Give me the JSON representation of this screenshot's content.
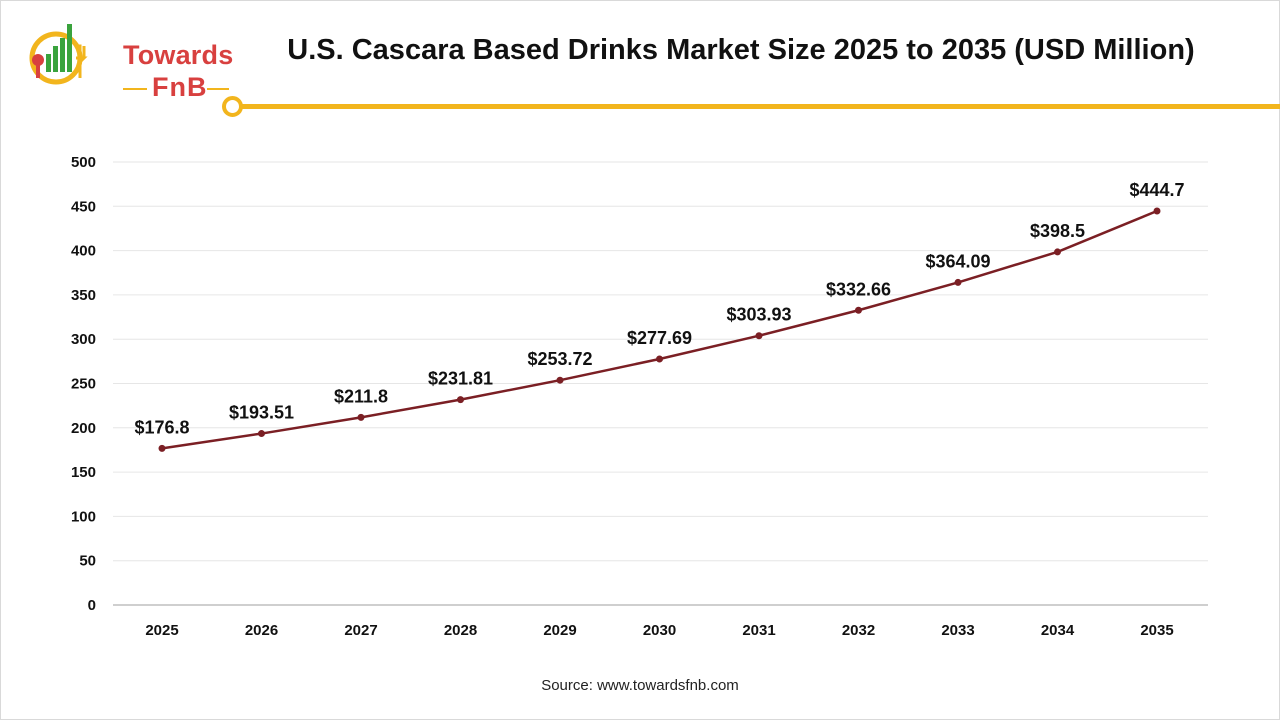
{
  "header": {
    "logo_line1": "Towards",
    "logo_line2": "FnB",
    "title": "U.S. Cascara Based Drinks Market Size 2025 to 2035 (USD Million)"
  },
  "footer": {
    "source": "Source: www.towardsfnb.com"
  },
  "colors": {
    "accent": "#f2b51d",
    "line": "#7b1f24",
    "brand": "#d8403f"
  },
  "chart_data": {
    "type": "line",
    "title": "U.S. Cascara Based Drinks Market Size 2025 to 2035 (USD Million)",
    "xlabel": "",
    "ylabel": "",
    "categories": [
      "2025",
      "2026",
      "2027",
      "2028",
      "2029",
      "2030",
      "2031",
      "2032",
      "2033",
      "2034",
      "2035"
    ],
    "series": [
      {
        "values": [
          176.8,
          193.51,
          211.8,
          231.81,
          253.72,
          277.69,
          303.93,
          332.66,
          364.09,
          398.5,
          444.7
        ],
        "labels": [
          "$176.8",
          "$193.51",
          "$211.8",
          "$231.81",
          "$253.72",
          "$277.69",
          "$303.93",
          "$332.66",
          "$364.09",
          "$398.5",
          "$444.7"
        ]
      }
    ],
    "ylim": [
      0,
      500
    ],
    "yticks": [
      0,
      50,
      100,
      150,
      200,
      250,
      300,
      350,
      400,
      450,
      500
    ],
    "grid": true,
    "legend": "none"
  }
}
